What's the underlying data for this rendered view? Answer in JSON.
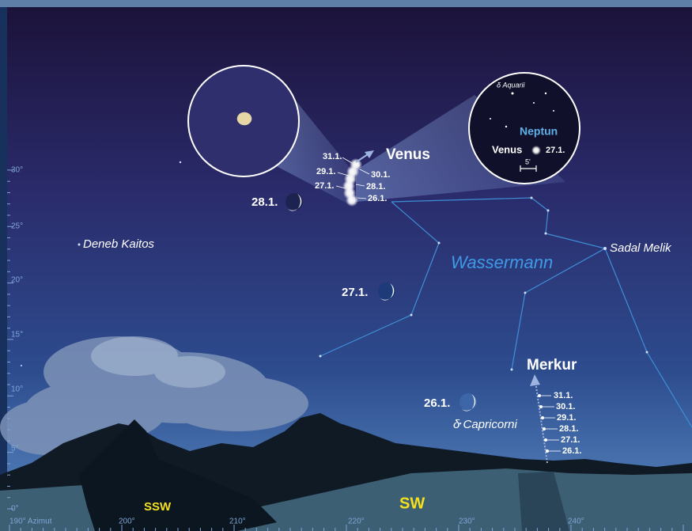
{
  "axis": {
    "altitude": [
      "30°",
      "25°",
      "20°",
      "15°",
      "10°",
      "5°",
      "0°"
    ],
    "azimuth": [
      "190° Azimut",
      "200°",
      "210°",
      "220°",
      "230°",
      "240°"
    ]
  },
  "directions": [
    "SSW",
    "SW"
  ],
  "labels": {
    "deneb": "Deneb Kaitos",
    "constellation": "Wassermann",
    "sadal": "Sadal Melik",
    "capricorni": "δ Capricorni"
  },
  "venus": {
    "name": "Venus",
    "dates": [
      "31.1.",
      "29.1.",
      "27.1.",
      "30.1.",
      "28.1.",
      "26.1."
    ]
  },
  "moon": {
    "dates": [
      "28.1.",
      "27.1.",
      "26.1."
    ]
  },
  "merkur": {
    "name": "Merkur",
    "dates": [
      "31.1.",
      "30.1.",
      "29.1.",
      "28.1.",
      "27.1.",
      "26.1."
    ]
  },
  "inset": {
    "star": "δ Aquarii",
    "neptune": "Neptun",
    "venus": "Venus",
    "date": "27.1.",
    "scale": "5'"
  }
}
